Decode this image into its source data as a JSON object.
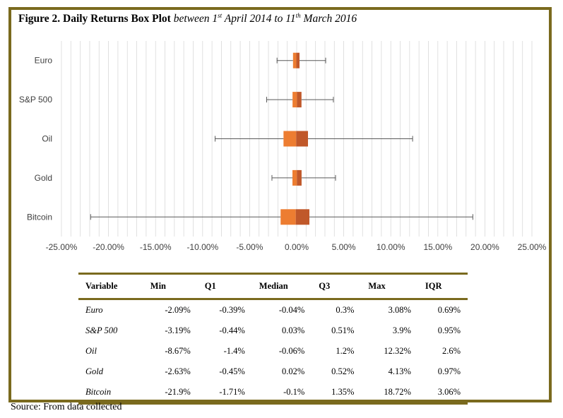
{
  "figure": {
    "label": "Figure 2",
    "title_bold": ". Daily Returns Box Plot",
    "title_italic_1": " between 1",
    "sup_1": "st",
    "title_italic_2": " April 2014 to 11",
    "sup_2": "th",
    "title_italic_3": " March 2016"
  },
  "chart_data": {
    "type": "box",
    "categories": [
      "Euro",
      "S&P 500",
      "Oil",
      "Gold",
      "Bitcoin"
    ],
    "series": [
      {
        "category": "Euro",
        "min": -2.09,
        "q1": -0.39,
        "median": -0.04,
        "q3": 0.3,
        "max": 3.08
      },
      {
        "category": "S&P 500",
        "min": -3.19,
        "q1": -0.44,
        "median": 0.03,
        "q3": 0.51,
        "max": 3.9
      },
      {
        "category": "Oil",
        "min": -8.67,
        "q1": -1.4,
        "median": -0.06,
        "q3": 1.2,
        "max": 12.32
      },
      {
        "category": "Gold",
        "min": -2.63,
        "q1": -0.45,
        "median": 0.02,
        "q3": 0.52,
        "max": 4.13
      },
      {
        "category": "Bitcoin",
        "min": -21.9,
        "q1": -1.71,
        "median": -0.1,
        "q3": 1.35,
        "max": 18.72
      }
    ],
    "x_ticks": [
      "-25.00%",
      "-20.00%",
      "-15.00%",
      "-10.00%",
      "-5.00%",
      "0.00%",
      "5.00%",
      "10.00%",
      "15.00%",
      "20.00%",
      "25.00%"
    ],
    "xlim": [
      -25,
      25
    ],
    "grid": true,
    "colors": {
      "lower_box": "#ed7d31",
      "upper_box": "#c0582a",
      "whisker": "#595959",
      "grid": "#d9d9d9"
    }
  },
  "table": {
    "headers": [
      "Variable",
      "Min",
      "Q1",
      "Median",
      "Q3",
      "Max",
      "IQR"
    ],
    "rows": [
      [
        "Euro",
        "-2.09%",
        "-0.39%",
        "-0.04%",
        "0.3%",
        "3.08%",
        "0.69%"
      ],
      [
        "S&P 500",
        "-3.19%",
        "-0.44%",
        "0.03%",
        "0.51%",
        "3.9%",
        "0.95%"
      ],
      [
        "Oil",
        "-8.67%",
        "-1.4%",
        "-0.06%",
        "1.2%",
        "12.32%",
        "2.6%"
      ],
      [
        "Gold",
        "-2.63%",
        "-0.45%",
        "0.02%",
        "0.52%",
        "4.13%",
        "0.97%"
      ],
      [
        "Bitcoin",
        "-21.9%",
        "-1.71%",
        "-0.1%",
        "1.35%",
        "18.72%",
        "3.06%"
      ]
    ]
  },
  "source": "Source: From data collected",
  "colors": {
    "frame": "#7a6a1e"
  }
}
